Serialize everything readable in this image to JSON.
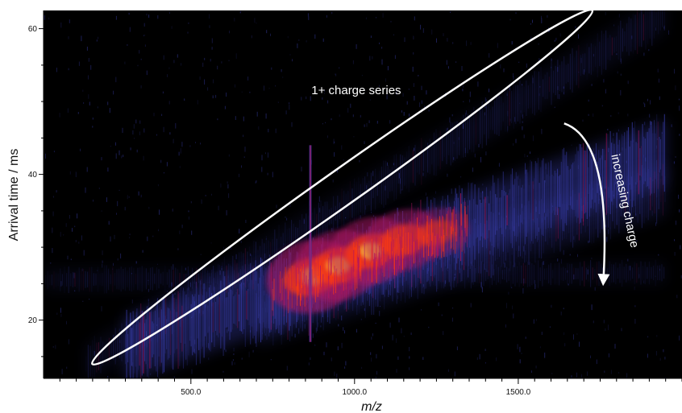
{
  "chart_data": {
    "type": "heatmap",
    "title": "",
    "xlabel": "m/z",
    "ylabel": "Arrival time / ms",
    "xlim": [
      50,
      2000
    ],
    "ylim": [
      12,
      62.5
    ],
    "x_ticks": [
      {
        "value": 500,
        "label": "500.0"
      },
      {
        "value": 1000,
        "label": "1000.0"
      },
      {
        "value": 1500,
        "label": "1500.0"
      }
    ],
    "y_ticks": [
      {
        "value": 20,
        "label": "20"
      },
      {
        "value": 40,
        "label": "40"
      },
      {
        "value": 60,
        "label": "60"
      }
    ],
    "grid": false,
    "colors": {
      "background": "#000000",
      "low": "#3a3fb0",
      "mid": "#b01560",
      "high": "#ff3a10",
      "peak": "#ffd23a",
      "annotation": "#ffffff"
    },
    "bands": [
      {
        "x_start": 180,
        "x_end": 1950,
        "y_start": 14,
        "y_end": 62,
        "width": 2.5,
        "intensity": 0.35
      },
      {
        "x_start": 300,
        "x_end": 1950,
        "y_start": 16,
        "y_end": 43,
        "width": 4.5,
        "intensity": 1.0
      },
      {
        "x_start": 700,
        "x_end": 1950,
        "y_start": 20,
        "y_end": 38,
        "width": 3.5,
        "intensity": 0.6
      },
      {
        "x_start": 50,
        "x_end": 1950,
        "y_start": 25.5,
        "y_end": 26.5,
        "width": 1.5,
        "intensity": 0.3
      }
    ],
    "hotspots": [
      {
        "x": 870,
        "y": 26,
        "intensity": 1.0
      },
      {
        "x": 950,
        "y": 27.5,
        "intensity": 0.95
      },
      {
        "x": 1050,
        "y": 29.5,
        "intensity": 0.9
      },
      {
        "x": 1150,
        "y": 31,
        "intensity": 0.8
      },
      {
        "x": 1250,
        "y": 32,
        "intensity": 0.6
      }
    ],
    "spike": {
      "x": 865,
      "y_start": 17,
      "y_end": 44
    },
    "annotations": [
      {
        "text": "1+ charge series",
        "shape": "ellipse",
        "x_range": [
          215,
          1710
        ],
        "y_range": [
          14.5,
          62
        ],
        "label_x": 1005,
        "label_y": 51
      },
      {
        "text": "increasing charge",
        "shape": "arrow",
        "from": {
          "x": 1640,
          "y": 47
        },
        "to": {
          "x": 1760,
          "y": 25.5
        }
      }
    ]
  }
}
